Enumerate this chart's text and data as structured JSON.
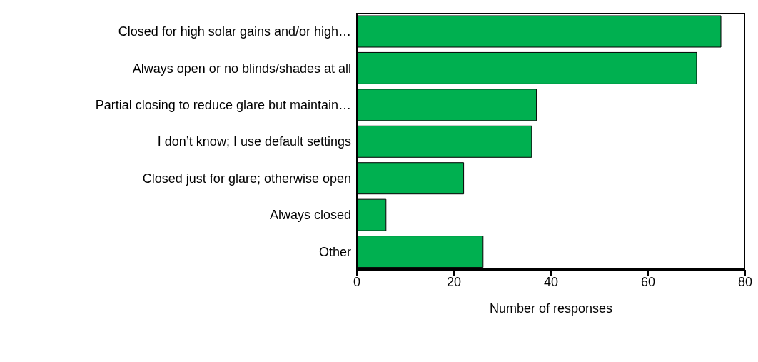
{
  "chart_data": {
    "type": "bar",
    "orientation": "horizontal",
    "xlabel": "Number of responses",
    "categories": [
      "Closed for high solar gains and/or high…",
      "Always open or no blinds/shades at all",
      "Partial closing to reduce glare but maintain…",
      "I don’t know; I use default settings",
      "Closed just for glare; otherwise open",
      "Always closed",
      "Other"
    ],
    "values": [
      75,
      70,
      37,
      36,
      22,
      6,
      26
    ],
    "color": "#00b050",
    "xlim": [
      0,
      80
    ],
    "xticks": [
      0,
      20,
      40,
      60,
      80
    ],
    "grid": false,
    "legend": false
  }
}
